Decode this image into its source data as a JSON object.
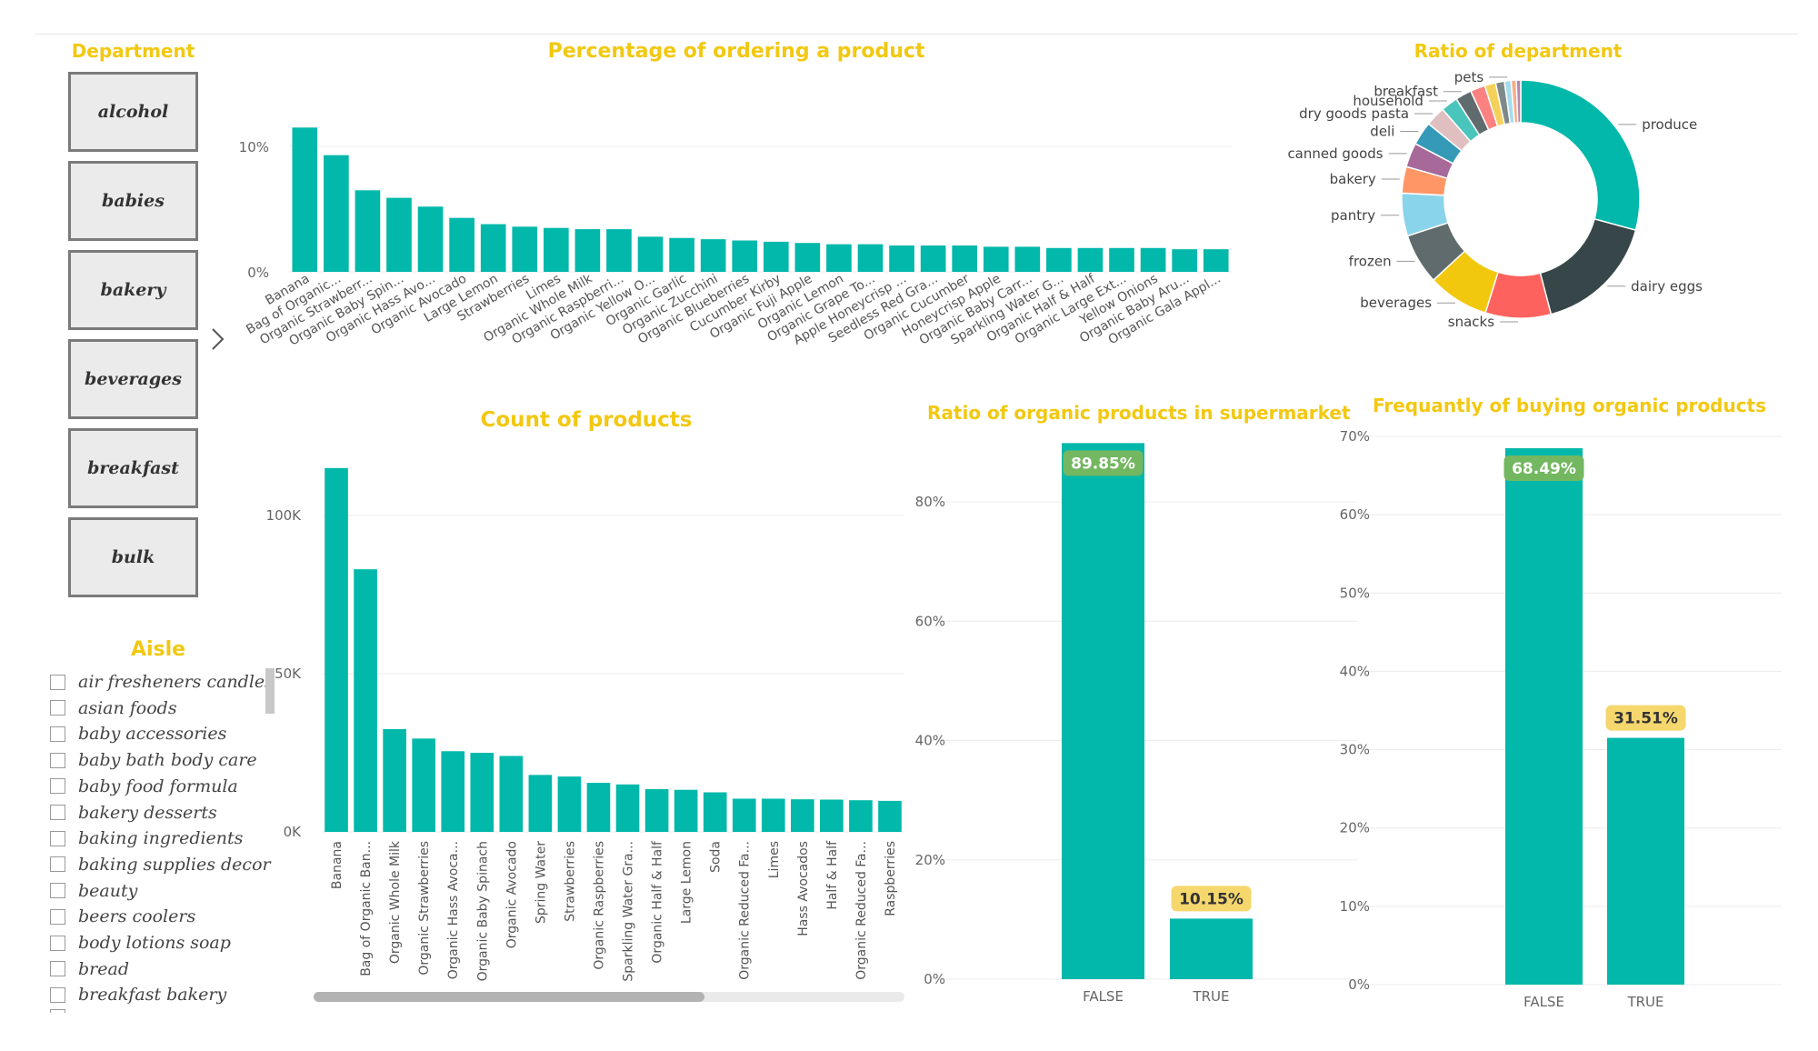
{
  "department": {
    "title": "Department",
    "items": [
      "alcohol",
      "babies",
      "bakery",
      "beverages",
      "breakfast",
      "bulk"
    ],
    "chevron": "chevron-right-icon"
  },
  "aisle": {
    "title": "Aisle",
    "items": [
      "air fresheners candles",
      "asian foods",
      "baby accessories",
      "baby bath body care",
      "baby food formula",
      "bakery desserts",
      "baking ingredients",
      "baking supplies decor",
      "beauty",
      "beers coolers",
      "body lotions soap",
      "bread",
      "breakfast bakery"
    ]
  },
  "colors": {
    "teal": "#01b8aa",
    "title_yellow": "#f2c811",
    "green_label": "#73b761",
    "yellow_label": "#f5d76e"
  },
  "chart_data": [
    {
      "id": "pct",
      "type": "bar",
      "title": "Percentage of ordering a product",
      "categories": [
        "Banana",
        "Bag of Organic...",
        "Organic Strawberr...",
        "Organic Baby Spin...",
        "Organic Hass Avo...",
        "Organic Avocado",
        "Large Lemon",
        "Strawberries",
        "Limes",
        "Organic Whole Milk",
        "Organic Raspberri...",
        "Organic Yellow O...",
        "Organic Garlic",
        "Organic Zucchini",
        "Organic Blueberries",
        "Cucumber Kirby",
        "Organic Fuji Apple",
        "Organic Lemon",
        "Organic Grape To...",
        "Apple Honeycrisp ...",
        "Seedless Red Gra...",
        "Organic Cucumber",
        "Honeycrisp Apple",
        "Organic Baby Carr...",
        "Sparkling Water G...",
        "Organic Half & Half",
        "Organic Large Ext...",
        "Yellow Onions",
        "Organic Baby Aru...",
        "Organic Gala Appl..."
      ],
      "values": [
        11.5,
        9.3,
        6.5,
        5.9,
        5.2,
        4.3,
        3.8,
        3.6,
        3.5,
        3.4,
        3.4,
        2.8,
        2.7,
        2.6,
        2.5,
        2.4,
        2.3,
        2.2,
        2.2,
        2.1,
        2.1,
        2.1,
        2.0,
        2.0,
        1.9,
        1.9,
        1.9,
        1.9,
        1.8,
        1.8
      ],
      "yticks": [
        "0%",
        "10%"
      ],
      "ylim": [
        0,
        12
      ]
    },
    {
      "id": "dept_ratio",
      "type": "pie",
      "title": "Ratio of  department",
      "labels": [
        "produce",
        "dairy eggs",
        "snacks",
        "beverages",
        "frozen",
        "pantry",
        "bakery",
        "canned goods",
        "deli",
        "dry goods pasta",
        "household",
        "breakfast",
        "",
        "",
        "",
        "pets",
        "",
        ""
      ],
      "values": [
        29.2,
        16.7,
        8.9,
        8.3,
        6.9,
        5.8,
        3.6,
        3.3,
        3.2,
        2.7,
        2.3,
        2.2,
        2.0,
        1.5,
        1.2,
        0.9,
        0.7,
        0.6
      ],
      "colors": [
        "#01b8aa",
        "#374649",
        "#fd625e",
        "#f2c80f",
        "#5f6b6d",
        "#8ad4eb",
        "#fe9666",
        "#a66999",
        "#3599b8",
        "#dfbfbf",
        "#4ac5bb",
        "#5f6b6d",
        "#fb8281",
        "#f4d25a",
        "#7f898a",
        "#a4ddee",
        "#fdab89",
        "#b687ac"
      ]
    },
    {
      "id": "count",
      "type": "bar",
      "title": "Count of products",
      "categories": [
        "Banana",
        "Bag of Organic Ban...",
        "Organic Whole Milk",
        "Organic Strawberries",
        "Organic Hass Avoca...",
        "Organic Baby Spinach",
        "Organic Avocado",
        "Spring Water",
        "Strawberries",
        "Organic Raspberries",
        "Sparkling Water Gra...",
        "Organic Half & Half",
        "Large Lemon",
        "Soda",
        "Organic Reduced Fa...",
        "Limes",
        "Hass Avocados",
        "Half & Half",
        "Organic Reduced Fa...",
        "Raspberries"
      ],
      "values": [
        115000,
        83000,
        32500,
        29500,
        25500,
        25000,
        24000,
        18000,
        17500,
        15500,
        15000,
        13500,
        13300,
        12500,
        10500,
        10500,
        10300,
        10200,
        10000,
        9800
      ],
      "yticks": [
        "0K",
        "50K",
        "100K"
      ],
      "ylim": [
        0,
        125000
      ]
    },
    {
      "id": "organic_ratio",
      "type": "bar",
      "title": "Ratio of organic products in supermarket",
      "categories": [
        "FALSE",
        "TRUE"
      ],
      "values": [
        89.85,
        10.15
      ],
      "data_labels": [
        "89.85%",
        "10.15%"
      ],
      "yticks": [
        "0%",
        "20%",
        "40%",
        "60%",
        "80%"
      ],
      "ylim": [
        0,
        90
      ]
    },
    {
      "id": "organic_freq",
      "type": "bar",
      "title": "Frequantly of buying organic products",
      "categories": [
        "FALSE",
        "TRUE"
      ],
      "values": [
        68.49,
        31.51
      ],
      "data_labels": [
        "68.49%",
        "31.51%"
      ],
      "yticks": [
        "0%",
        "10%",
        "20%",
        "30%",
        "40%",
        "50%",
        "60%",
        "70%"
      ],
      "ylim": [
        0,
        70
      ]
    }
  ]
}
